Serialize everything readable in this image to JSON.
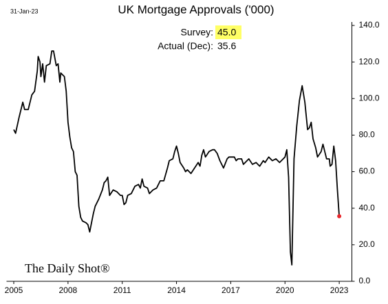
{
  "chart_data": {
    "type": "line",
    "title": "UK Mortgage Approvals ('000)",
    "date": "31-Jan-23",
    "source": "The Daily Shot®",
    "annotations": [
      {
        "label": "Survey:",
        "value": "45.0"
      },
      {
        "label": "Actual (Dec):",
        "value": "35.6"
      }
    ],
    "xlim": [
      2004.6,
      2023.7
    ],
    "xticks": [
      2005,
      2008,
      2011,
      2014,
      2017,
      2020,
      2023
    ],
    "ylim": [
      0,
      140
    ],
    "yticks": [
      {
        "value": 0,
        "label": "0.0"
      },
      {
        "value": 20,
        "label": "20.0"
      },
      {
        "value": 40,
        "label": "40.0"
      },
      {
        "value": 60,
        "label": "60.0"
      },
      {
        "value": 80,
        "label": "80.0"
      },
      {
        "value": 100,
        "label": "100.0"
      },
      {
        "value": 120,
        "label": "120.0"
      },
      {
        "value": 140,
        "label": "140.0"
      }
    ],
    "x": [
      2005.0,
      2005.1,
      2005.3,
      2005.5,
      2005.6,
      2005.8,
      2006.0,
      2006.15,
      2006.3,
      2006.35,
      2006.45,
      2006.5,
      2006.6,
      2006.7,
      2006.8,
      2007.0,
      2007.1,
      2007.2,
      2007.35,
      2007.45,
      2007.55,
      2007.6,
      2007.8,
      2007.9,
      2008.0,
      2008.1,
      2008.2,
      2008.3,
      2008.4,
      2008.5,
      2008.6,
      2008.7,
      2008.8,
      2009.0,
      2009.1,
      2009.2,
      2009.3,
      2009.4,
      2009.5,
      2009.7,
      2009.9,
      2010.0,
      2010.1,
      2010.2,
      2010.3,
      2010.5,
      2010.7,
      2010.9,
      2011.0,
      2011.1,
      2011.2,
      2011.3,
      2011.5,
      2011.7,
      2011.9,
      2012.0,
      2012.1,
      2012.2,
      2012.4,
      2012.5,
      2012.7,
      2012.9,
      2013.0,
      2013.1,
      2013.3,
      2013.5,
      2013.6,
      2013.8,
      2013.9,
      2014.0,
      2014.1,
      2014.2,
      2014.4,
      2014.5,
      2014.6,
      2014.8,
      2015.0,
      2015.2,
      2015.3,
      2015.4,
      2015.5,
      2015.6,
      2015.8,
      2016.0,
      2016.1,
      2016.25,
      2016.4,
      2016.6,
      2016.8,
      2016.9,
      2017.2,
      2017.3,
      2017.4,
      2017.6,
      2017.7,
      2017.9,
      2018.0,
      2018.2,
      2018.4,
      2018.6,
      2018.8,
      2018.9,
      2019.1,
      2019.3,
      2019.5,
      2019.7,
      2019.9,
      2020.0,
      2020.1,
      2020.2,
      2020.3,
      2020.38,
      2020.5,
      2020.65,
      2020.8,
      2020.95,
      2021.1,
      2021.25,
      2021.35,
      2021.45,
      2021.55,
      2021.7,
      2021.8,
      2022.0,
      2022.1,
      2022.2,
      2022.3,
      2022.45,
      2022.5,
      2022.6,
      2022.7,
      2022.8,
      2022.9,
      2023.0
    ],
    "series": [
      {
        "name": "Mortgage approvals",
        "color": "#000000",
        "end_color": "#e8262b",
        "values": [
          83,
          81,
          90,
          98,
          94,
          94,
          102,
          104,
          115,
          123,
          120,
          112,
          119,
          109,
          118,
          119,
          126,
          126,
          118,
          119,
          109,
          114,
          112,
          104,
          87,
          79,
          73,
          71,
          60,
          58,
          41,
          35,
          33,
          32,
          31,
          27,
          32,
          37,
          41,
          45,
          50,
          54,
          55,
          57,
          47,
          50,
          49,
          47,
          47,
          42,
          43,
          47,
          48,
          52,
          53,
          51,
          56,
          52,
          51,
          48,
          50,
          51,
          53,
          55,
          55,
          62,
          66,
          67,
          71,
          74,
          70,
          65,
          62,
          60,
          61,
          59,
          62,
          65,
          63,
          69,
          72,
          68,
          71,
          72,
          72,
          70,
          66,
          62,
          67,
          68,
          68,
          66,
          67,
          67,
          64,
          66,
          67,
          64,
          65,
          63,
          66,
          65,
          68,
          66,
          67,
          65,
          67,
          68,
          72,
          57,
          16,
          9,
          67,
          85,
          99,
          107,
          98,
          83,
          84,
          87,
          78,
          73,
          68,
          71,
          75,
          71,
          67,
          67,
          63,
          64,
          74,
          66,
          50,
          35.6
        ]
      }
    ]
  }
}
